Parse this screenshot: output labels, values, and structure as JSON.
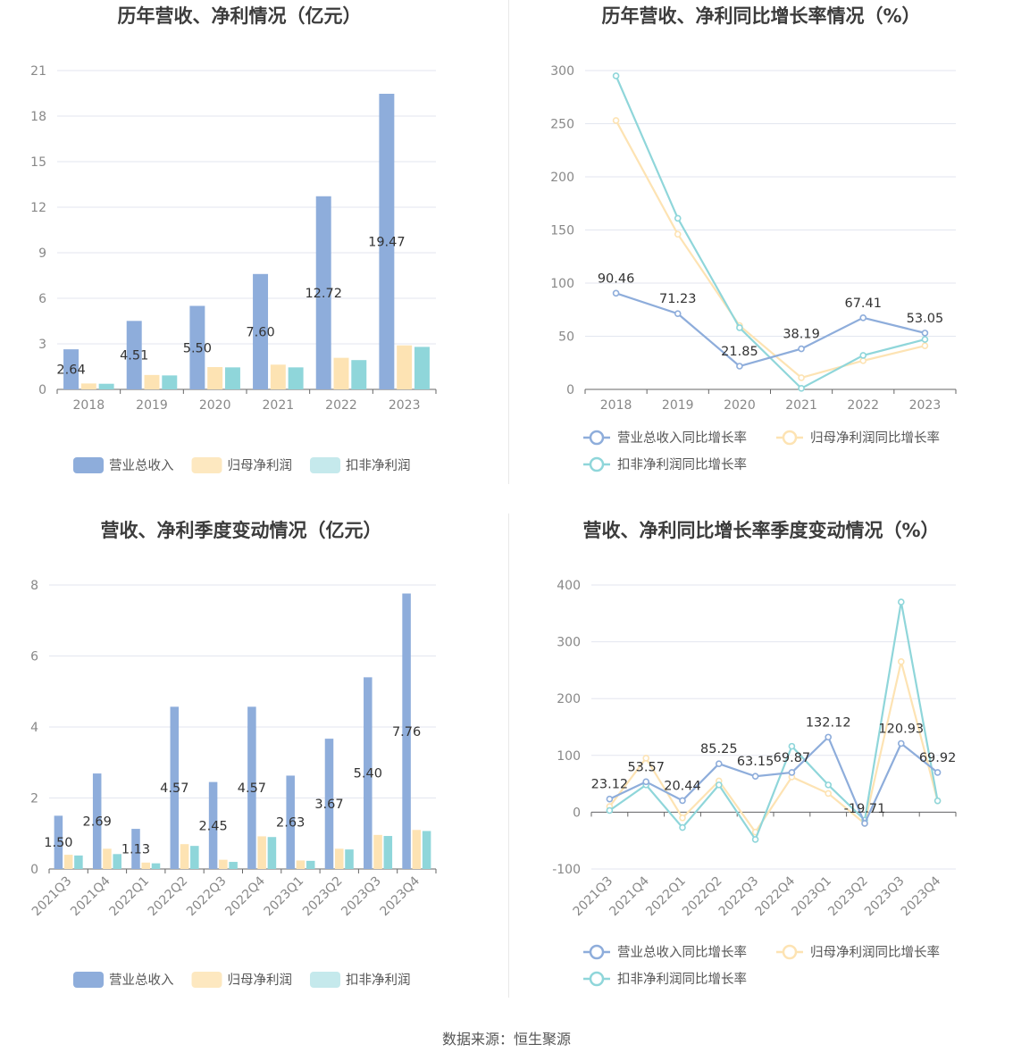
{
  "colors": {
    "revenue": "#8eaddb",
    "net_profit": "#fde3b3",
    "deducted_profit": "#8fd6da",
    "revenue_legend": "#8eaddb",
    "net_legend": "#fde8c0",
    "deducted_legend": "#c5e9ec",
    "grid": "#e3e6ef",
    "axis": "#666666"
  },
  "source_text": "数据来源：恒生聚源",
  "chart_data": [
    {
      "id": "annual-bar",
      "type": "bar",
      "title": "历年营收、净利情况（亿元）",
      "categories": [
        "2018",
        "2019",
        "2020",
        "2021",
        "2022",
        "2023"
      ],
      "ylim": [
        0,
        21
      ],
      "yticks": [
        0,
        3,
        6,
        9,
        12,
        15,
        18,
        21
      ],
      "grid": true,
      "legend_position": "bottom",
      "series": [
        {
          "name": "营业总收入",
          "color_key": "revenue",
          "legend_color_key": "revenue_legend",
          "values": [
            2.64,
            4.51,
            5.5,
            7.6,
            12.72,
            19.47
          ],
          "labels": [
            "2.64",
            "4.51",
            "5.50",
            "7.60",
            "12.72",
            "19.47"
          ]
        },
        {
          "name": "归母净利润",
          "color_key": "net_profit",
          "legend_color_key": "net_legend",
          "values": [
            0.39,
            0.95,
            1.47,
            1.63,
            2.08,
            2.9
          ]
        },
        {
          "name": "扣非净利润",
          "color_key": "deducted_profit",
          "legend_color_key": "deducted_legend",
          "values": [
            0.37,
            0.92,
            1.45,
            1.45,
            1.93,
            2.8
          ]
        }
      ]
    },
    {
      "id": "annual-line",
      "type": "line",
      "title": "历年营收、净利同比增长率情况（%）",
      "categories": [
        "2018",
        "2019",
        "2020",
        "2021",
        "2022",
        "2023"
      ],
      "ylim": [
        0,
        300
      ],
      "yticks": [
        0,
        50,
        100,
        150,
        200,
        250,
        300
      ],
      "grid": true,
      "legend_position": "bottom",
      "series": [
        {
          "name": "营业总收入同比增长率",
          "color_key": "revenue",
          "values": [
            90.46,
            71.23,
            21.85,
            38.19,
            67.41,
            53.05
          ],
          "labels": [
            "90.46",
            "71.23",
            "21.85",
            "38.19",
            "67.41",
            "53.05"
          ]
        },
        {
          "name": "归母净利润同比增长率",
          "color_key": "net_profit",
          "values": [
            253,
            146,
            60,
            11,
            27,
            41
          ]
        },
        {
          "name": "扣非净利润同比增长率",
          "color_key": "deducted_profit",
          "values": [
            295,
            161,
            58,
            1,
            32,
            47
          ]
        }
      ]
    },
    {
      "id": "quarter-bar",
      "type": "bar",
      "title": "营收、净利季度变动情况（亿元）",
      "categories": [
        "2021Q3",
        "2021Q4",
        "2022Q1",
        "2022Q2",
        "2022Q3",
        "2022Q4",
        "2023Q1",
        "2023Q2",
        "2023Q3",
        "2023Q4"
      ],
      "ylim": [
        0,
        8
      ],
      "yticks": [
        0,
        2,
        4,
        6,
        8
      ],
      "grid": true,
      "legend_position": "bottom",
      "series": [
        {
          "name": "营业总收入",
          "color_key": "revenue",
          "legend_color_key": "revenue_legend",
          "values": [
            1.5,
            2.69,
            1.13,
            4.57,
            2.45,
            4.57,
            2.63,
            3.67,
            5.4,
            7.76
          ],
          "labels": [
            "1.50",
            "2.69",
            "1.13",
            "4.57",
            "2.45",
            "4.57",
            "2.63",
            "3.67",
            "5.40",
            "7.76"
          ]
        },
        {
          "name": "归母净利润",
          "color_key": "net_profit",
          "legend_color_key": "net_legend",
          "values": [
            0.4,
            0.57,
            0.18,
            0.7,
            0.26,
            0.92,
            0.24,
            0.57,
            0.96,
            1.1
          ]
        },
        {
          "name": "扣非净利润",
          "color_key": "deducted_profit",
          "legend_color_key": "deducted_legend",
          "values": [
            0.38,
            0.42,
            0.16,
            0.65,
            0.2,
            0.9,
            0.23,
            0.55,
            0.93,
            1.07
          ]
        }
      ]
    },
    {
      "id": "quarter-line",
      "type": "line",
      "title": "营收、净利同比增长率季度变动情况（%）",
      "categories": [
        "2021Q3",
        "2021Q4",
        "2022Q1",
        "2022Q2",
        "2022Q3",
        "2022Q4",
        "2023Q1",
        "2023Q2",
        "2023Q3",
        "2023Q4"
      ],
      "ylim": [
        -100,
        400
      ],
      "yticks": [
        -100,
        0,
        100,
        200,
        300,
        400
      ],
      "grid": true,
      "legend_position": "bottom",
      "series": [
        {
          "name": "营业总收入同比增长率",
          "color_key": "revenue",
          "values": [
            23.12,
            53.57,
            20.44,
            85.25,
            63.15,
            69.87,
            132.12,
            -19.71,
            120.93,
            69.92
          ],
          "labels": [
            "23.12",
            "53.57",
            "20.44",
            "85.25",
            "63.15",
            "69.87",
            "132.12",
            "-19.71",
            "120.93",
            "69.92"
          ]
        },
        {
          "name": "归母净利润同比增长率",
          "color_key": "net_profit",
          "values": [
            10,
            95,
            -10,
            55,
            -35,
            62,
            33,
            -20,
            265,
            20
          ]
        },
        {
          "name": "扣非净利润同比增长率",
          "color_key": "deducted_profit",
          "values": [
            3,
            48,
            -27,
            48,
            -48,
            116,
            48,
            -14,
            370,
            20
          ]
        }
      ]
    }
  ]
}
